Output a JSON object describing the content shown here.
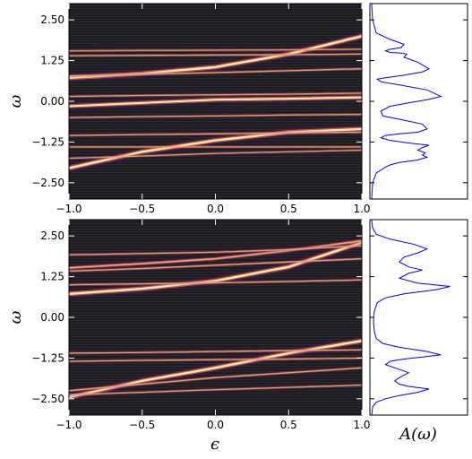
{
  "chart_data": [
    {
      "type": "heatmap",
      "panel": "top-heatmap",
      "xlabel": "",
      "ylabel": "ω",
      "xlim": [
        -1.0,
        1.0
      ],
      "ylim": [
        -3.0,
        3.0
      ],
      "x_ticks": [
        -1.0,
        -0.5,
        0.0,
        0.5,
        1.0
      ],
      "x_tick_labels": [
        "−1.0",
        "−0.5",
        "0.0",
        "0.5",
        "1.0"
      ],
      "y_ticks": [
        2.5,
        1.25,
        0.0,
        -1.25,
        -2.5
      ],
      "y_tick_labels": [
        "2.50",
        "1.25",
        "0.00",
        "−1.25",
        "−2.50"
      ],
      "colormap": "inferno",
      "background": "#1c1c22",
      "bands": [
        {
          "y_at_x": [
            [
              -1.0,
              0.72
            ],
            [
              -0.5,
              0.85
            ],
            [
              0.0,
              1.05
            ],
            [
              0.5,
              1.45
            ],
            [
              1.0,
              2.0
            ]
          ],
          "intensity": 1.0,
          "width": 0.09
        },
        {
          "y_at_x": [
            [
              -1.0,
              0.78
            ],
            [
              -0.5,
              0.83
            ],
            [
              0.0,
              0.88
            ],
            [
              0.5,
              0.94
            ],
            [
              1.0,
              1.0
            ]
          ],
          "intensity": 0.55,
          "width": 0.05
        },
        {
          "y_at_x": [
            [
              -1.0,
              1.4
            ],
            [
              -0.5,
              1.41
            ],
            [
              0.0,
              1.42
            ],
            [
              0.5,
              1.43
            ],
            [
              1.0,
              1.45
            ]
          ],
          "intensity": 0.55,
          "width": 0.05
        },
        {
          "y_at_x": [
            [
              -1.0,
              1.55
            ],
            [
              -0.5,
              1.56
            ],
            [
              0.0,
              1.57
            ],
            [
              0.5,
              1.58
            ],
            [
              1.0,
              1.6
            ]
          ],
          "intensity": 0.35,
          "width": 0.06
        },
        {
          "y_at_x": [
            [
              -1.0,
              -0.15
            ],
            [
              -0.5,
              -0.05
            ],
            [
              0.0,
              0.05
            ],
            [
              0.5,
              0.08
            ],
            [
              1.0,
              0.12
            ]
          ],
          "intensity": 0.95,
          "width": 0.08
        },
        {
          "y_at_x": [
            [
              -1.0,
              0.15
            ],
            [
              -0.5,
              0.18
            ],
            [
              0.0,
              0.2
            ],
            [
              0.5,
              0.22
            ],
            [
              1.0,
              0.25
            ]
          ],
          "intensity": 0.5,
          "width": 0.05
        },
        {
          "y_at_x": [
            [
              -1.0,
              -0.5
            ],
            [
              -0.5,
              -0.47
            ],
            [
              0.0,
              -0.45
            ],
            [
              0.5,
              -0.42
            ],
            [
              1.0,
              -0.4
            ]
          ],
          "intensity": 0.5,
          "width": 0.05
        },
        {
          "y_at_x": [
            [
              -1.0,
              -2.05
            ],
            [
              -0.5,
              -1.55
            ],
            [
              0.0,
              -1.2
            ],
            [
              0.5,
              -0.95
            ],
            [
              1.0,
              -0.85
            ]
          ],
          "intensity": 1.0,
          "width": 0.09
        },
        {
          "y_at_x": [
            [
              -1.0,
              -1.05
            ],
            [
              -0.5,
              -1.02
            ],
            [
              0.0,
              -1.0
            ],
            [
              0.5,
              -0.97
            ],
            [
              1.0,
              -0.95
            ]
          ],
          "intensity": 0.55,
          "width": 0.05
        },
        {
          "y_at_x": [
            [
              -1.0,
              -1.4
            ],
            [
              -0.5,
              -1.4
            ],
            [
              0.0,
              -1.4
            ],
            [
              0.5,
              -1.4
            ],
            [
              1.0,
              -1.4
            ]
          ],
          "intensity": 0.55,
          "width": 0.05
        },
        {
          "y_at_x": [
            [
              -1.0,
              -1.75
            ],
            [
              -0.5,
              -1.68
            ],
            [
              0.0,
              -1.6
            ],
            [
              0.5,
              -1.55
            ],
            [
              1.0,
              -1.5
            ]
          ],
          "intensity": 0.45,
          "width": 0.05
        }
      ]
    },
    {
      "type": "line",
      "panel": "top-spectral",
      "xlabel": "",
      "ylabel": "",
      "ylim": [
        -3.0,
        3.0
      ],
      "color": "#0000ff",
      "x": [
        0.0,
        0.01,
        0.05,
        0.2,
        0.35,
        0.32,
        0.2,
        0.15,
        0.2,
        0.32,
        0.38,
        0.35,
        0.5,
        0.62,
        0.55,
        0.35,
        0.15,
        0.06,
        0.1,
        0.3,
        0.6,
        0.75,
        0.6,
        0.4,
        0.2,
        0.1,
        0.12,
        0.3,
        0.55,
        0.6,
        0.5,
        0.3,
        0.15,
        0.1,
        0.2,
        0.4,
        0.62,
        0.55,
        0.5,
        0.58,
        0.55,
        0.6,
        0.5,
        0.3,
        0.2,
        0.15,
        0.05,
        0.01,
        0.0
      ],
      "y": [
        3.0,
        2.5,
        2.1,
        1.9,
        1.75,
        1.65,
        1.6,
        1.55,
        1.5,
        1.48,
        1.45,
        1.35,
        1.2,
        1.0,
        0.9,
        0.8,
        0.72,
        0.68,
        0.6,
        0.5,
        0.35,
        0.15,
        0.05,
        -0.05,
        -0.15,
        -0.3,
        -0.45,
        -0.55,
        -0.7,
        -0.85,
        -0.95,
        -1.0,
        -1.05,
        -1.12,
        -1.2,
        -1.28,
        -1.35,
        -1.42,
        -1.5,
        -1.58,
        -1.65,
        -1.72,
        -1.8,
        -1.88,
        -1.95,
        -2.02,
        -2.2,
        -2.5,
        -3.0
      ]
    },
    {
      "type": "heatmap",
      "panel": "bottom-heatmap",
      "xlabel": "ϵ",
      "ylabel": "ω",
      "xlim": [
        -1.0,
        1.0
      ],
      "ylim": [
        -3.0,
        3.0
      ],
      "x_ticks": [
        -1.0,
        -0.5,
        0.0,
        0.5,
        1.0
      ],
      "x_tick_labels": [
        "−1.0",
        "−0.5",
        "0.0",
        "0.5",
        "1.0"
      ],
      "y_ticks": [
        2.5,
        1.25,
        0.0,
        -1.25,
        -2.5
      ],
      "y_tick_labels": [
        "2.50",
        "1.25",
        "0.00",
        "−1.25",
        "−2.50"
      ],
      "colormap": "inferno",
      "background": "#1c1c22",
      "bands": [
        {
          "y_at_x": [
            [
              -1.0,
              0.72
            ],
            [
              -0.5,
              0.88
            ],
            [
              0.0,
              1.12
            ],
            [
              0.5,
              1.55
            ],
            [
              1.0,
              2.3
            ]
          ],
          "intensity": 1.0,
          "width": 0.09
        },
        {
          "y_at_x": [
            [
              -1.0,
              1.0
            ],
            [
              -0.5,
              1.03
            ],
            [
              0.0,
              1.06
            ],
            [
              0.5,
              1.1
            ],
            [
              1.0,
              1.15
            ]
          ],
          "intensity": 0.55,
          "width": 0.05
        },
        {
          "y_at_x": [
            [
              -1.0,
              1.42
            ],
            [
              -0.5,
              1.5
            ],
            [
              0.0,
              1.6
            ],
            [
              0.5,
              1.7
            ],
            [
              1.0,
              1.8
            ]
          ],
          "intensity": 0.6,
          "width": 0.05
        },
        {
          "y_at_x": [
            [
              -1.0,
              1.52
            ],
            [
              -0.5,
              1.65
            ],
            [
              0.0,
              1.8
            ],
            [
              0.5,
              2.05
            ],
            [
              1.0,
              2.35
            ]
          ],
          "intensity": 0.8,
          "width": 0.06
        },
        {
          "y_at_x": [
            [
              -1.0,
              1.92
            ],
            [
              -0.5,
              1.96
            ],
            [
              0.0,
              2.0
            ],
            [
              0.5,
              2.08
            ],
            [
              1.0,
              2.2
            ]
          ],
          "intensity": 0.55,
          "width": 0.05
        },
        {
          "y_at_x": [
            [
              -1.0,
              -2.45
            ],
            [
              -0.5,
              -1.95
            ],
            [
              0.0,
              -1.55
            ],
            [
              0.5,
              -1.1
            ],
            [
              1.0,
              -0.72
            ]
          ],
          "intensity": 1.0,
          "width": 0.09
        },
        {
          "y_at_x": [
            [
              -1.0,
              -1.1
            ],
            [
              -0.5,
              -1.08
            ],
            [
              0.0,
              -1.05
            ],
            [
              0.5,
              -1.02
            ],
            [
              1.0,
              -1.0
            ]
          ],
          "intensity": 0.55,
          "width": 0.05
        },
        {
          "y_at_x": [
            [
              -1.0,
              -1.35
            ],
            [
              -0.5,
              -1.32
            ],
            [
              0.0,
              -1.3
            ],
            [
              0.5,
              -1.28
            ],
            [
              1.0,
              -1.25
            ]
          ],
          "intensity": 0.55,
          "width": 0.05
        },
        {
          "y_at_x": [
            [
              -1.0,
              -2.25
            ],
            [
              -0.5,
              -2.05
            ],
            [
              0.0,
              -1.85
            ],
            [
              0.5,
              -1.7
            ],
            [
              1.0,
              -1.55
            ]
          ],
          "intensity": 0.6,
          "width": 0.05
        },
        {
          "y_at_x": [
            [
              -1.0,
              -2.38
            ],
            [
              -0.5,
              -2.3
            ],
            [
              0.0,
              -2.22
            ],
            [
              0.5,
              -2.15
            ],
            [
              1.0,
              -2.08
            ]
          ],
          "intensity": 0.5,
          "width": 0.05
        }
      ]
    },
    {
      "type": "line",
      "panel": "bottom-spectral",
      "xlabel": "A(ω)",
      "ylabel": "",
      "ylim": [
        -3.0,
        3.0
      ],
      "color": "#0000ff",
      "x": [
        0.0,
        0.01,
        0.05,
        0.2,
        0.45,
        0.6,
        0.5,
        0.35,
        0.3,
        0.4,
        0.55,
        0.4,
        0.3,
        0.5,
        0.85,
        0.7,
        0.35,
        0.15,
        0.06,
        0.03,
        0.02,
        0.02,
        0.03,
        0.05,
        0.12,
        0.3,
        0.6,
        0.75,
        0.55,
        0.35,
        0.2,
        0.15,
        0.25,
        0.4,
        0.3,
        0.25,
        0.3,
        0.4,
        0.62,
        0.5,
        0.3,
        0.15,
        0.05,
        0.01,
        0.0
      ],
      "y": [
        3.0,
        2.75,
        2.55,
        2.4,
        2.25,
        2.1,
        1.98,
        1.85,
        1.7,
        1.55,
        1.45,
        1.35,
        1.2,
        1.05,
        0.95,
        0.85,
        0.72,
        0.6,
        0.45,
        0.2,
        0.0,
        -0.2,
        -0.45,
        -0.65,
        -0.8,
        -0.92,
        -1.05,
        -1.15,
        -1.22,
        -1.28,
        -1.35,
        -1.45,
        -1.55,
        -1.7,
        -1.85,
        -1.95,
        -2.05,
        -2.12,
        -2.2,
        -2.3,
        -2.4,
        -2.5,
        -2.6,
        -2.75,
        -3.0
      ]
    }
  ]
}
